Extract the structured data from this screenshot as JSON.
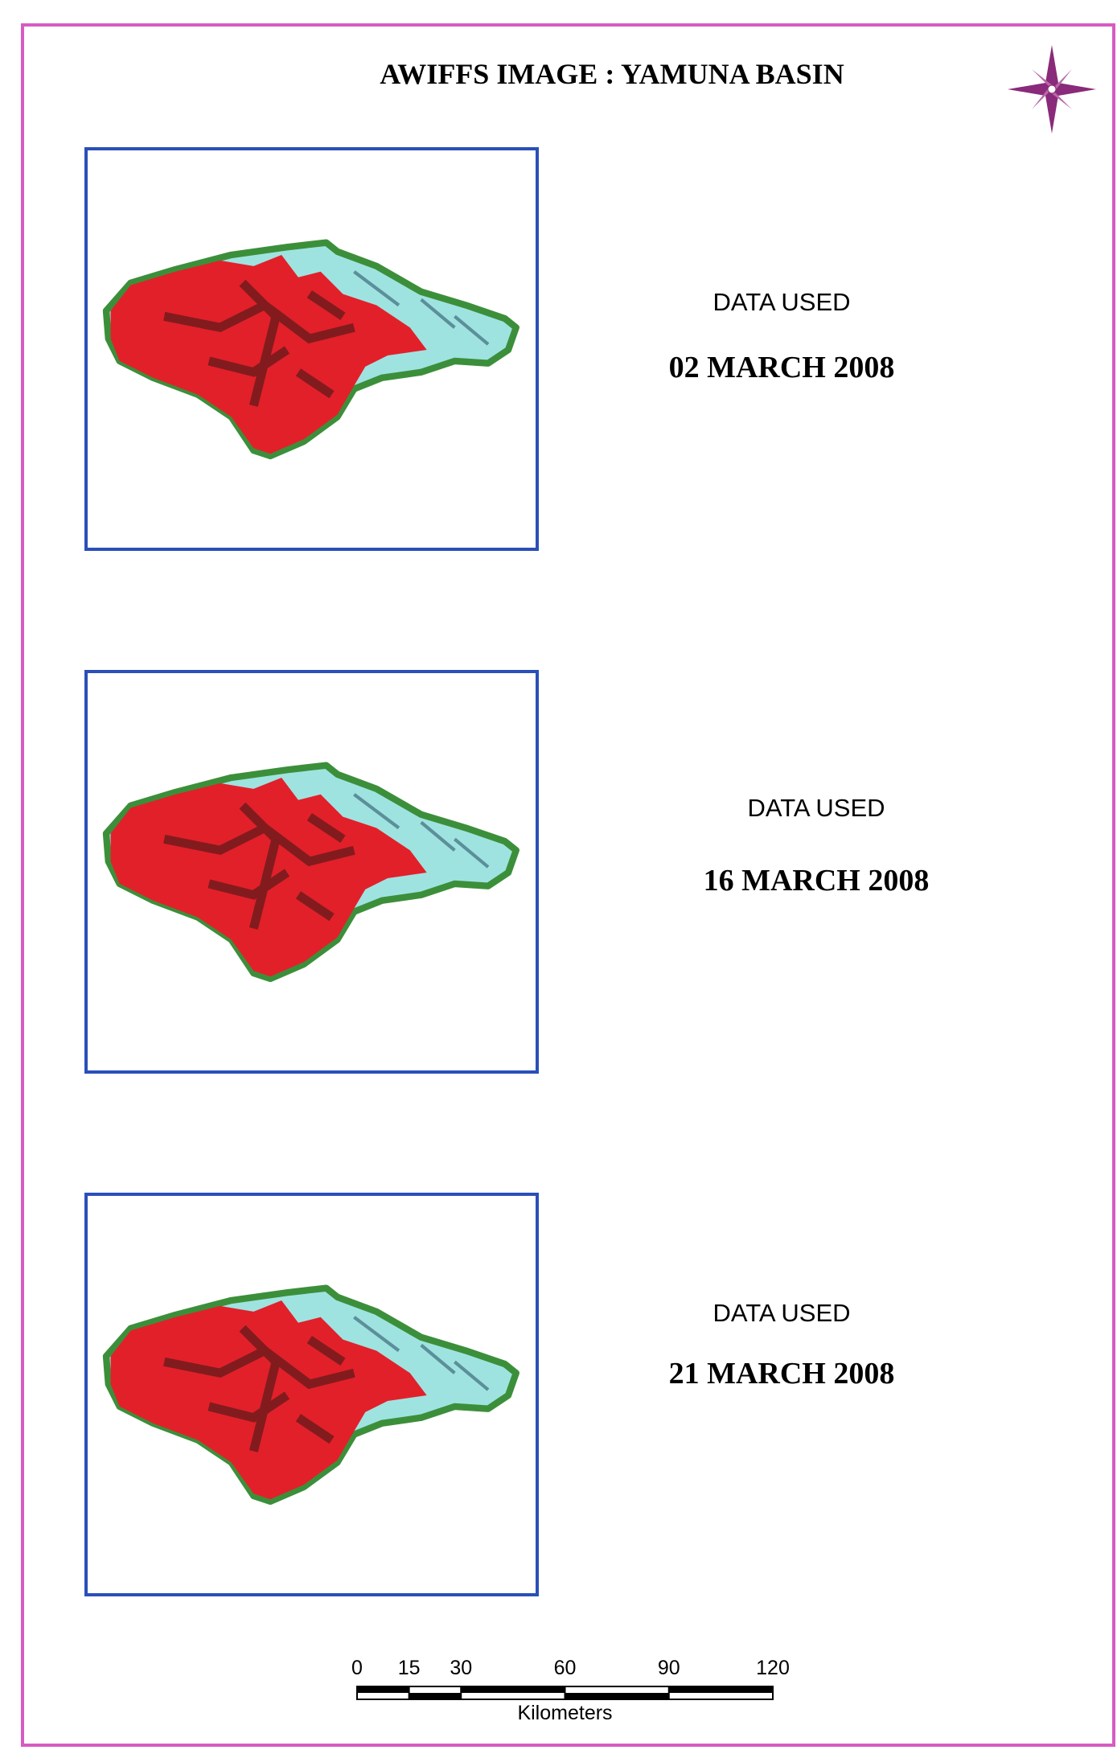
{
  "title": "AWIFFS IMAGE  : YAMUNA BASIN",
  "panels": [
    {
      "label": "DATA  USED",
      "date": "02 MARCH 2008"
    },
    {
      "label": "DATA  USED",
      "date": "16 MARCH 2008"
    },
    {
      "label": "DATA  USED",
      "date": "21 MARCH 2008"
    }
  ],
  "scale_bar": {
    "ticks": [
      0,
      15,
      30,
      60,
      90,
      120
    ],
    "unit": "Kilometers"
  }
}
